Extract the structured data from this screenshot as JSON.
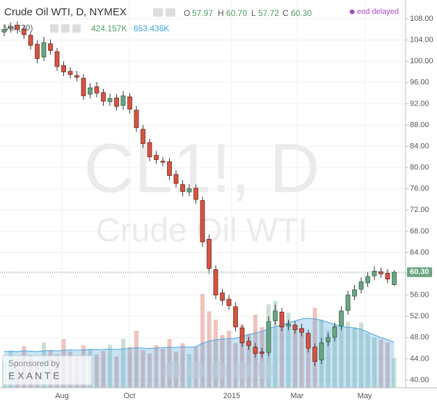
{
  "chart_data": {
    "type": "candlestick",
    "title": "Crude Oil WTI, D, NYMEX",
    "ohlc_legend": [
      {
        "label": "O",
        "value": "57.97"
      },
      {
        "label": "H",
        "value": "60.70"
      },
      {
        "label": "L",
        "value": "57.72"
      },
      {
        "label": "C",
        "value": "60.30"
      }
    ],
    "status": "eod delayed",
    "volume_indicator": "Vol (20)",
    "volume_value": "424.157K",
    "volume_ma_value": "653.436K",
    "watermark": [
      "CL1!, D",
      "Crude Oil WTI"
    ],
    "sponsor": {
      "label": "Sponsored by",
      "name": "E X A N T E"
    },
    "last_price_label": "60.30",
    "x_labels": [
      "Aug",
      "Oct",
      "2015",
      "Mar",
      "May"
    ],
    "up_color": "#6ba583",
    "down_color": "#d75442",
    "volume_ma_color": "#4aa3df",
    "open": [
      105.5,
      106.2,
      106.8,
      106.1,
      104.9,
      103.2,
      100.8,
      103.3,
      101.8,
      99.2,
      98.1,
      97.3,
      96.8,
      93.8,
      95.2,
      94.1,
      92.4,
      93.1,
      91.7,
      93.3,
      90.8,
      87.2,
      84.7,
      82.3,
      81.2,
      81.1,
      78.7,
      76.8,
      75.4,
      76.1,
      73.8,
      66.5,
      60.8,
      56.4,
      55.2,
      53.8,
      49.8,
      47.3,
      46.2,
      45.3,
      45.2,
      51.2,
      52.8,
      50.2,
      50.3,
      49.7,
      48.8,
      46.2,
      43.8,
      47.2,
      48.1,
      50.2,
      53.1,
      55.8,
      57.1,
      58.3,
      59.6,
      60.4,
      60.1,
      57.97
    ],
    "high": [
      106.9,
      107.3,
      107.5,
      106.8,
      105.6,
      103.9,
      104.6,
      104.1,
      102.5,
      100.0,
      98.9,
      98.2,
      97.6,
      95.9,
      96.1,
      94.8,
      93.9,
      93.8,
      94.4,
      94.0,
      91.6,
      88.0,
      85.4,
      83.1,
      82.0,
      81.8,
      79.5,
      77.6,
      76.9,
      76.8,
      74.5,
      67.4,
      61.6,
      57.2,
      56.0,
      54.6,
      50.5,
      48.1,
      47.0,
      46.1,
      52.0,
      54.2,
      53.6,
      51.4,
      51.1,
      50.6,
      49.5,
      46.9,
      47.9,
      48.8,
      50.8,
      53.9,
      56.8,
      57.9,
      59.3,
      60.4,
      61.4,
      61.2,
      60.9,
      60.7
    ],
    "low": [
      104.7,
      105.4,
      105.2,
      104.2,
      102.2,
      99.6,
      100.1,
      101.2,
      98.2,
      97.2,
      96.8,
      96.2,
      92.7,
      93.0,
      93.2,
      91.6,
      91.6,
      90.7,
      90.9,
      90.2,
      86.7,
      83.7,
      81.2,
      80.7,
      80.2,
      77.7,
      76.2,
      74.6,
      74.6,
      73.2,
      65.1,
      60.0,
      55.2,
      54.1,
      53.2,
      49.2,
      46.2,
      45.7,
      44.2,
      44.2,
      44.5,
      50.4,
      49.2,
      49.4,
      48.7,
      48.2,
      45.2,
      42.6,
      43.0,
      46.4,
      47.3,
      49.4,
      52.3,
      55.0,
      56.3,
      57.5,
      58.8,
      59.2,
      58.2,
      57.72
    ],
    "close": [
      106,
      106.5,
      106,
      105,
      103,
      100.5,
      103.5,
      102,
      99,
      98,
      97.5,
      97,
      93.5,
      95,
      94,
      92.5,
      93,
      91.5,
      93.5,
      91,
      87.5,
      84.5,
      82,
      81.5,
      81,
      78.5,
      77,
      75.5,
      76,
      74,
      66,
      61,
      56,
      55,
      54,
      50,
      47,
      46.5,
      45,
      45,
      51,
      53,
      50,
      50.5,
      49.5,
      49,
      46,
      43.5,
      47,
      48,
      50,
      53,
      56,
      57,
      58.5,
      59.5,
      60.5,
      60,
      59,
      60.3
    ],
    "volume": [
      380,
      520,
      410,
      600,
      470,
      390,
      650,
      540,
      480,
      700,
      520,
      430,
      610,
      560,
      480,
      530,
      620,
      450,
      700,
      590,
      820,
      540,
      490,
      610,
      560,
      700,
      520,
      640,
      480,
      590,
      1350,
      1100,
      980,
      760,
      820,
      640,
      900,
      780,
      1050,
      870,
      1200,
      1250,
      980,
      1080,
      920,
      860,
      760,
      1150,
      980,
      830,
      900,
      1010,
      950,
      870,
      940,
      780,
      720,
      690,
      650,
      424.157
    ],
    "volume_ma": [
      520,
      525,
      520,
      530,
      525,
      520,
      530,
      535,
      530,
      540,
      545,
      540,
      545,
      550,
      545,
      550,
      555,
      550,
      560,
      565,
      575,
      570,
      565,
      570,
      575,
      585,
      580,
      590,
      585,
      590,
      640,
      670,
      690,
      700,
      705,
      710,
      740,
      760,
      790,
      810,
      850,
      880,
      900,
      940,
      960,
      990,
      1000,
      990,
      970,
      940,
      910,
      880,
      870,
      860,
      840,
      800,
      760,
      720,
      690,
      653.436
    ],
    "volume_ylim": [
      0,
      1500
    ],
    "ylim": [
      40,
      108
    ],
    "yticks": [
      {
        "value": 40,
        "label": "40.00"
      },
      {
        "value": 44,
        "label": "44.00"
      },
      {
        "value": 48,
        "label": "48.00"
      },
      {
        "value": 52,
        "label": "52.00"
      },
      {
        "value": 56,
        "label": "56.00"
      },
      {
        "value": 60,
        "label": "60.00"
      },
      {
        "value": 64,
        "label": "64.00"
      },
      {
        "value": 68,
        "label": "68.00"
      },
      {
        "value": 72,
        "label": "72.00"
      },
      {
        "value": 76,
        "label": "76.00"
      },
      {
        "value": 80,
        "label": "80.00"
      },
      {
        "value": 84,
        "label": "84.00"
      },
      {
        "value": 88,
        "label": "88.00"
      },
      {
        "value": 92,
        "label": "92.00"
      },
      {
        "value": 96,
        "label": "96.00"
      },
      {
        "value": 100,
        "label": "100.00"
      },
      {
        "value": 104,
        "label": "104.00"
      },
      {
        "value": 108,
        "label": "108.00"
      }
    ],
    "grid": true
  }
}
